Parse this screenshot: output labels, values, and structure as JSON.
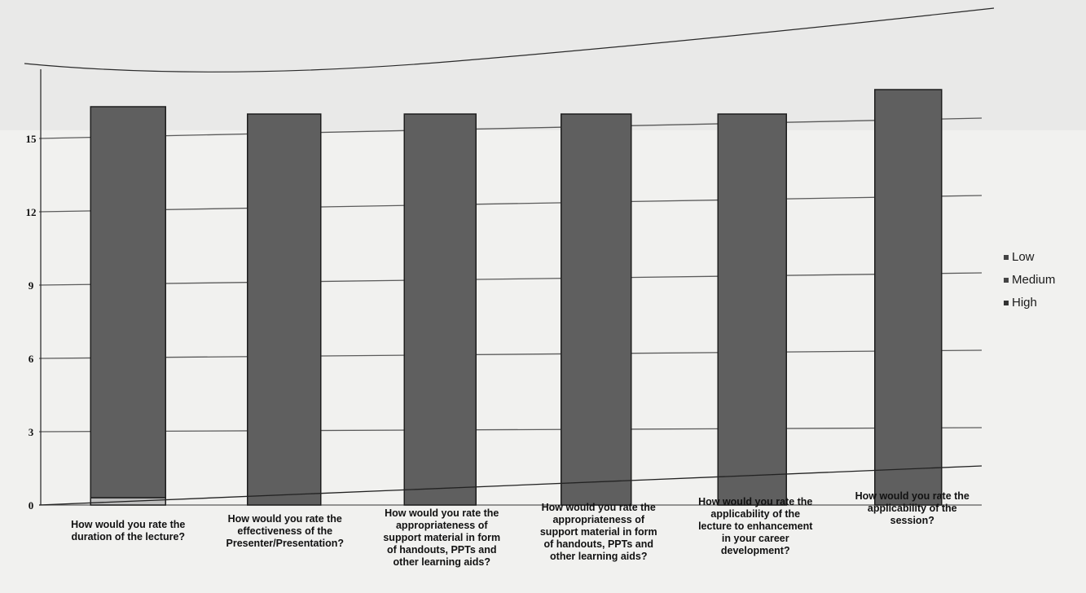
{
  "chart_data": {
    "type": "bar",
    "stacked": true,
    "categories": [
      "How would you rate the duration of the lecture?",
      "How would you rate the effectiveness of the Presenter/Presentation?",
      "How would you rate the appropriateness of support material in form of handouts, PPTs and other learning aids?",
      "How would you rate the appropriateness of support material in form of handouts, PPTs and other learning aids?",
      "How would you rate the applicability of the lecture to enhancement in your career development?",
      "How would you rate the applicability of the session?"
    ],
    "category_lines": [
      [
        "How would you rate the",
        "duration of the lecture?"
      ],
      [
        "How would you rate the",
        "effectiveness of the",
        "Presenter/Presentation?"
      ],
      [
        "How would you rate the",
        "appropriateness of",
        "support material in form",
        "of handouts, PPTs and",
        "other learning aids?"
      ],
      [
        "How would you rate the",
        "appropriateness of",
        "support material in form",
        "of handouts, PPTs and",
        "other learning aids?"
      ],
      [
        "How would you rate the",
        "applicability of the",
        "lecture to enhancement",
        "in your career",
        "development?"
      ],
      [
        "How would you rate the",
        "applicability of the",
        "session?"
      ]
    ],
    "series": [
      {
        "name": "Low",
        "values": [
          0,
          0,
          0,
          0,
          0,
          0
        ],
        "color": "#9a9a9a"
      },
      {
        "name": "Medium",
        "values": [
          0.3,
          0,
          0,
          0,
          0,
          0
        ],
        "color": "#bdbdbd"
      },
      {
        "name": "High",
        "values": [
          16,
          16,
          16,
          16,
          16,
          17
        ],
        "color": "#5f5f5f"
      }
    ],
    "yticks": [
      "0",
      "3",
      "6",
      "9",
      "12",
      "15"
    ],
    "ylim": [
      0,
      18
    ],
    "grid": true,
    "legend_position": "right"
  }
}
